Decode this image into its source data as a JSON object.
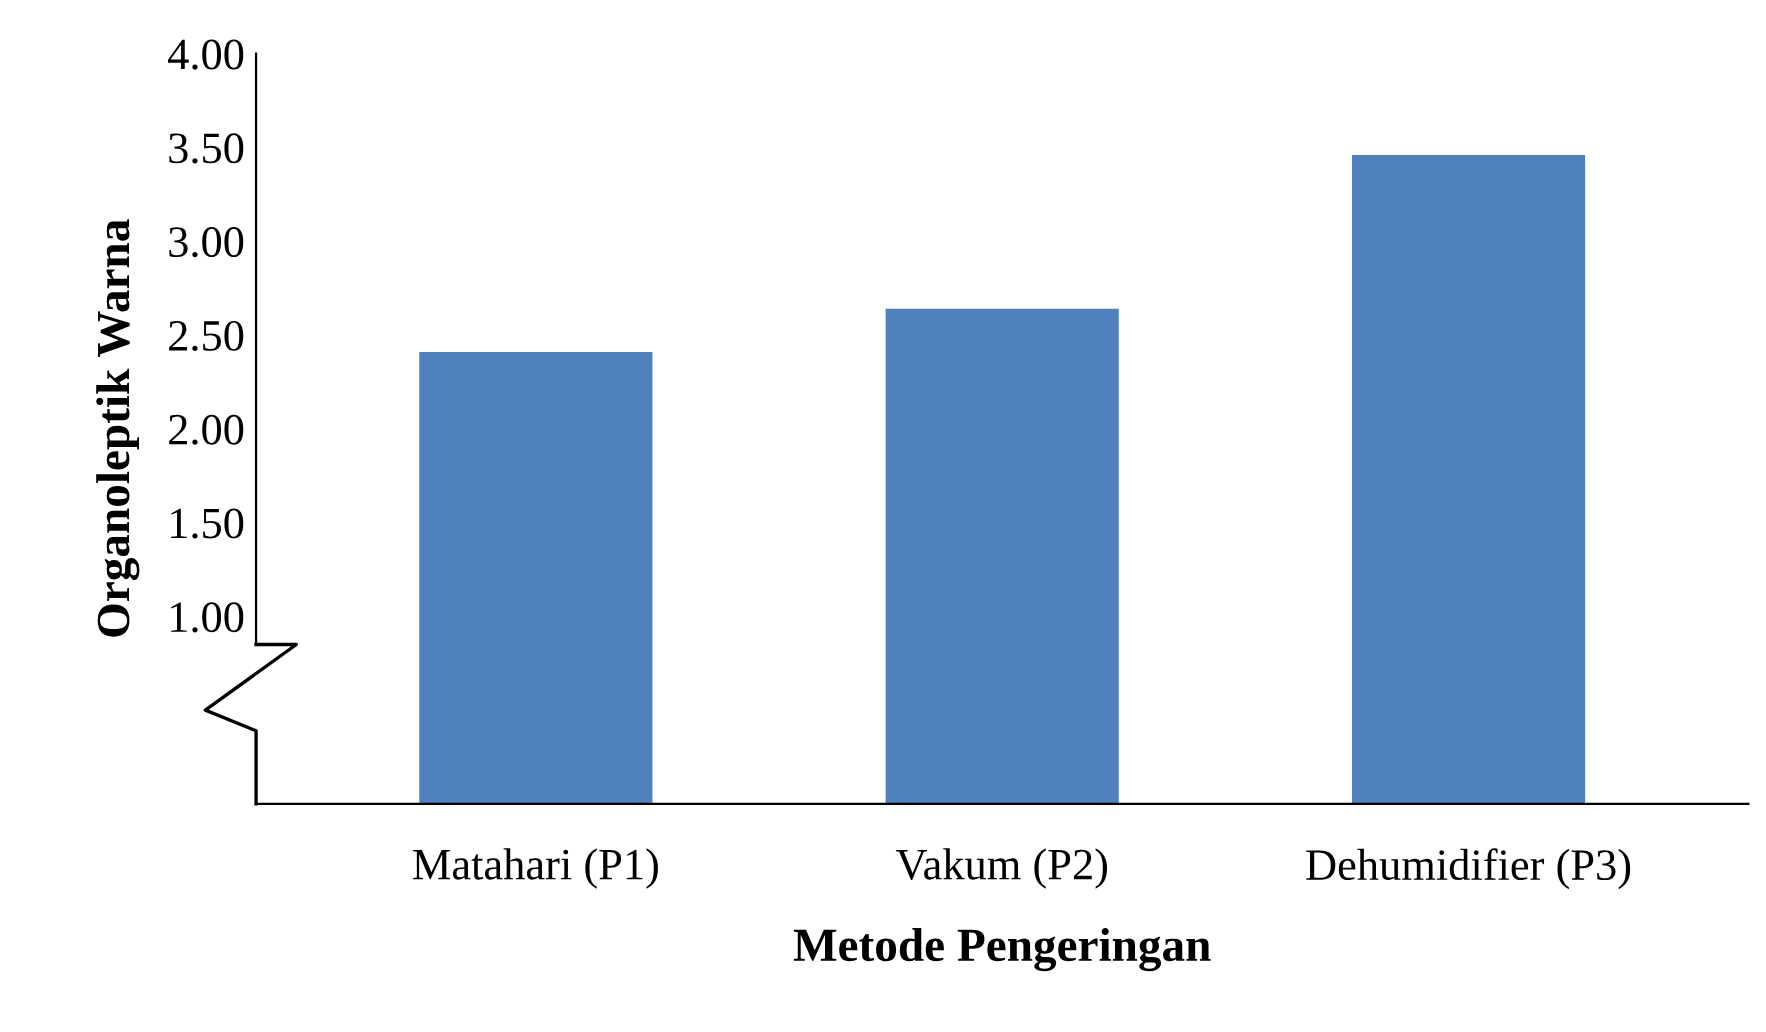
{
  "chart_data": {
    "type": "bar",
    "xlabel": "Metode Pengeringan",
    "ylabel": "Organoleptik Warna",
    "categories": [
      "Matahari (P1)",
      "Vakum (P2)",
      "Dehumidifier (P3)"
    ],
    "values": [
      2.41,
      2.64,
      3.46
    ],
    "color": "#4f81bd",
    "ylim": [
      0,
      4
    ],
    "yticks": [
      {
        "value": 1,
        "label": "1.00"
      },
      {
        "value": 1.5,
        "label": "1.50"
      },
      {
        "value": 2,
        "label": "2.00"
      },
      {
        "value": 2.5,
        "label": "2.50"
      },
      {
        "value": 3,
        "label": "3.00"
      },
      {
        "value": 3.5,
        "label": "3.50"
      },
      {
        "value": 4,
        "label": "4.00"
      }
    ],
    "grid": false
  }
}
